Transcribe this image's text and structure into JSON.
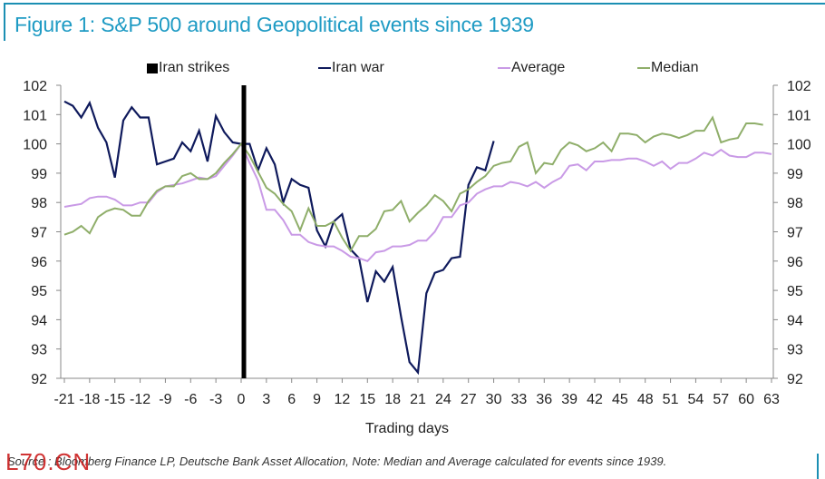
{
  "figure": {
    "title": "Figure 1: S&P 500 around Geopolitical events since 1939",
    "source": "Source : Bloomberg Finance LP, Deutsche Bank Asset Allocation, Note: Median and Average calculated for events since 1939.",
    "watermark": "L70.CN"
  },
  "chart_data": {
    "type": "line",
    "title": "Figure 1: S&P 500 around Geopolitical events since 1939",
    "xlabel": "Trading days",
    "ylabel": "",
    "xlim": [
      -21,
      63
    ],
    "ylim": [
      92,
      102
    ],
    "x_ticks": [
      -21,
      -18,
      -15,
      -12,
      -9,
      -6,
      -3,
      0,
      3,
      6,
      9,
      12,
      15,
      18,
      21,
      24,
      27,
      30,
      33,
      36,
      39,
      42,
      45,
      48,
      51,
      54,
      57,
      60,
      63
    ],
    "y_ticks": [
      92,
      93,
      94,
      95,
      96,
      97,
      98,
      99,
      100,
      101,
      102
    ],
    "y_axes": [
      "left",
      "right"
    ],
    "grid": false,
    "legend_position": "top",
    "event_marker": {
      "name": "Iran strikes",
      "x": 0,
      "color": "#000000"
    },
    "series": [
      {
        "name": "Iran war",
        "color": "#0f1a5c",
        "x_start": -21,
        "values": [
          101.45,
          101.3,
          100.9,
          101.4,
          100.55,
          100.05,
          98.85,
          100.8,
          101.25,
          100.9,
          100.9,
          99.3,
          99.4,
          99.5,
          100.05,
          99.75,
          100.45,
          99.4,
          100.95,
          100.4,
          100.05,
          100.0,
          100.0,
          99.1,
          99.85,
          99.3,
          98.0,
          98.8,
          98.6,
          98.5,
          97.05,
          96.5,
          97.35,
          97.6,
          96.4,
          96.1,
          94.6,
          95.65,
          95.3,
          95.8,
          94.1,
          92.55,
          92.2,
          94.9,
          95.6,
          95.7,
          96.1,
          96.15,
          98.6,
          99.2,
          99.1,
          100.1
        ]
      },
      {
        "name": "Average",
        "color": "#c99ae6",
        "x_start": -21,
        "values": [
          97.85,
          97.9,
          97.95,
          98.15,
          98.2,
          98.2,
          98.1,
          97.9,
          97.9,
          98.0,
          98.0,
          98.35,
          98.55,
          98.6,
          98.65,
          98.75,
          98.85,
          98.8,
          98.9,
          99.25,
          99.6,
          100.0,
          99.35,
          98.75,
          97.75,
          97.75,
          97.4,
          96.9,
          96.9,
          96.65,
          96.55,
          96.5,
          96.5,
          96.35,
          96.15,
          96.1,
          96.0,
          96.3,
          96.35,
          96.5,
          96.5,
          96.55,
          96.7,
          96.7,
          97.0,
          97.5,
          97.5,
          97.9,
          98.0,
          98.3,
          98.45,
          98.55,
          98.55,
          98.7,
          98.65,
          98.55,
          98.7,
          98.5,
          98.7,
          98.85,
          99.25,
          99.3,
          99.1,
          99.4,
          99.4,
          99.45,
          99.45,
          99.5,
          99.5,
          99.4,
          99.25,
          99.4,
          99.15,
          99.35,
          99.35,
          99.5,
          99.7,
          99.6,
          99.8,
          99.6,
          99.55,
          99.55,
          99.7,
          99.7,
          99.65
        ]
      },
      {
        "name": "Median",
        "color": "#8fae6a",
        "x_start": -21,
        "values": [
          96.9,
          97.0,
          97.2,
          96.95,
          97.5,
          97.7,
          97.8,
          97.75,
          97.55,
          97.55,
          98.05,
          98.4,
          98.55,
          98.55,
          98.9,
          99.0,
          98.8,
          98.8,
          99.0,
          99.35,
          99.65,
          100.0,
          99.6,
          99.05,
          98.5,
          98.3,
          97.95,
          97.7,
          97.05,
          97.8,
          97.2,
          97.2,
          97.35,
          96.8,
          96.35,
          96.85,
          96.85,
          97.1,
          97.7,
          97.75,
          98.05,
          97.35,
          97.65,
          97.9,
          98.25,
          98.05,
          97.7,
          98.3,
          98.45,
          98.7,
          98.9,
          99.25,
          99.35,
          99.4,
          99.9,
          100.05,
          99.0,
          99.35,
          99.3,
          99.8,
          100.05,
          99.95,
          99.75,
          99.85,
          100.05,
          99.75,
          100.35,
          100.35,
          100.3,
          100.05,
          100.25,
          100.35,
          100.3,
          100.2,
          100.3,
          100.45,
          100.45,
          100.9,
          100.05,
          100.15,
          100.2,
          100.7,
          100.7,
          100.65
        ]
      }
    ]
  },
  "legend": [
    {
      "label": "Iran strikes",
      "kind": "box",
      "color": "#000000"
    },
    {
      "label": "Iran war",
      "kind": "line",
      "color": "#0f1a5c"
    },
    {
      "label": "Average",
      "kind": "line",
      "color": "#c99ae6"
    },
    {
      "label": "Median",
      "kind": "line",
      "color": "#8fae6a"
    }
  ]
}
